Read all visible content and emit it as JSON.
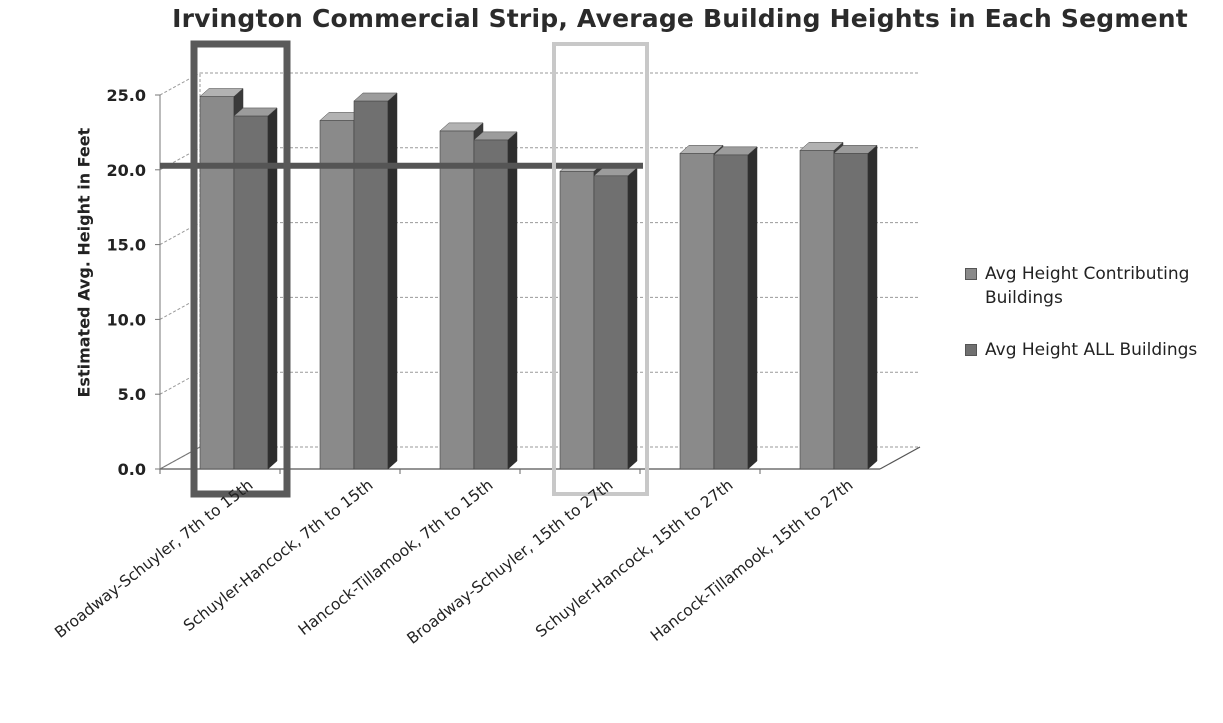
{
  "chart_data": {
    "type": "bar",
    "title": "Irvington Commercial Strip, Average Building Heights in Each Segment",
    "xlabel": "",
    "ylabel": "Estimated Avg. Height in Feet",
    "ylim": [
      0,
      25
    ],
    "yticks": [
      "0.0",
      "5.0",
      "10.0",
      "15.0",
      "20.0",
      "25.0"
    ],
    "grid": true,
    "legend_position": "right",
    "categories": [
      "Broadway-Schuyler, 7th to 15th",
      "Schuyler-Hancock, 7th to 15th",
      "Hancock-Tillamook, 7th to 15th",
      "Broadway-Schuyler, 15th to 27th",
      "Schuyler-Hancock, 15th to 27th",
      "Hancock-Tillamook, 15th to 27th"
    ],
    "series": [
      {
        "name": "Avg Height Contributing Buildings",
        "values": [
          24.9,
          23.3,
          22.6,
          19.9,
          21.1,
          21.3
        ]
      },
      {
        "name": "Avg Height ALL Buildings",
        "values": [
          23.6,
          24.6,
          22.0,
          19.6,
          21.0,
          21.1
        ]
      }
    ],
    "reference_line": {
      "value": 20.0
    },
    "highlights": [
      {
        "category_index": 0,
        "style": "dark"
      },
      {
        "category_index": 3,
        "style": "light"
      }
    ],
    "colors": {
      "series_front": [
        "#8a8a8a",
        "#707070"
      ],
      "series_side": [
        "#3a3a3a",
        "#2e2e2e"
      ],
      "series_top": [
        "#b2b2b2",
        "#9c9c9c"
      ],
      "reference_line": "#555555",
      "highlight_dark": "#5a5a5a",
      "highlight_light": "#c8c8c8",
      "grid": "#9a9a9a"
    }
  }
}
